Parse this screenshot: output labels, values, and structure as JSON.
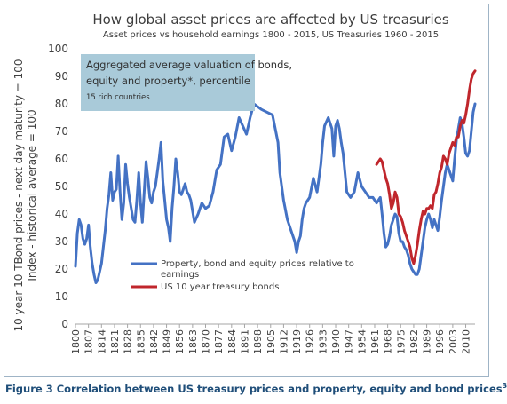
{
  "chart_data": {
    "type": "line",
    "title": "How global asset prices are affected by US treasuries",
    "subtitle": "Asset prices vs household earnings 1800 - 2015, US Treasuries 1960 - 2015",
    "ylabel_lines": [
      "10 year 10 TBond prices - next day maturity = 100",
      "Index - historical average = 100"
    ],
    "ylim": [
      0,
      100
    ],
    "yticks": [
      0,
      10,
      20,
      30,
      40,
      50,
      60,
      70,
      80,
      90,
      100
    ],
    "xlim": [
      1800,
      2015
    ],
    "xticks": [
      "1800",
      "1807",
      "1814",
      "1821",
      "1828",
      "1835",
      "1842",
      "1849",
      "1856",
      "1863",
      "1870",
      "1877",
      "1884",
      "1891",
      "1898",
      "1905",
      "1912",
      "1919",
      "1926",
      "1933",
      "1940",
      "1947",
      "1954",
      "1961",
      "1968",
      "1975",
      "1982",
      "1989",
      "1996",
      "2003",
      "2010"
    ],
    "annotation": {
      "lines": [
        "Aggregated average valuation of bonds,",
        "equity and property*, percentile"
      ],
      "sub": "15 rich countries"
    },
    "legend": [
      {
        "label_lines": [
          "Property, bond and equity prices relative to",
          "earnings"
        ],
        "color": "#4472c4"
      },
      {
        "label_lines": [
          "US 10 year treasury bonds"
        ],
        "color": "#c0262c"
      }
    ],
    "series": [
      {
        "name": "Property, bond and equity prices relative to earnings",
        "color": "#4472c4",
        "x": [
          1800,
          1801,
          1802,
          1803,
          1804,
          1805,
          1806,
          1807,
          1808,
          1809,
          1810,
          1811,
          1812,
          1813,
          1814,
          1815,
          1816,
          1817,
          1818,
          1819,
          1820,
          1821,
          1822,
          1823,
          1824,
          1825,
          1826,
          1827,
          1828,
          1829,
          1830,
          1831,
          1832,
          1833,
          1834,
          1835,
          1836,
          1837,
          1838,
          1839,
          1840,
          1841,
          1842,
          1843,
          1844,
          1845,
          1846,
          1847,
          1848,
          1849,
          1850,
          1851,
          1852,
          1853,
          1854,
          1855,
          1856,
          1857,
          1858,
          1859,
          1860,
          1861,
          1862,
          1864,
          1866,
          1868,
          1870,
          1872,
          1874,
          1876,
          1878,
          1880,
          1882,
          1884,
          1886,
          1888,
          1890,
          1892,
          1894,
          1896,
          1898,
          1900,
          1903,
          1906,
          1909,
          1910,
          1912,
          1914,
          1916,
          1918,
          1919,
          1920,
          1921,
          1922,
          1923,
          1924,
          1926,
          1928,
          1930,
          1932,
          1933,
          1934,
          1936,
          1938,
          1939,
          1940,
          1941,
          1942,
          1943,
          1944,
          1945,
          1946,
          1948,
          1950,
          1952,
          1954,
          1955,
          1956,
          1958,
          1960,
          1962,
          1964,
          1965,
          1966,
          1967,
          1968,
          1969,
          1970,
          1971,
          1972,
          1973,
          1974,
          1975,
          1976,
          1977,
          1978,
          1979,
          1980,
          1981,
          1982,
          1983,
          1984,
          1985,
          1986,
          1987,
          1988,
          1989,
          1990,
          1991,
          1992,
          1993,
          1994,
          1995,
          1996,
          1997,
          1998,
          1999,
          2000,
          2001,
          2002,
          2003,
          2004,
          2005,
          2006,
          2007,
          2008,
          2009,
          2010,
          2011,
          2012,
          2013,
          2014,
          2015
        ],
        "y": [
          21,
          33,
          38,
          36,
          31,
          29,
          31,
          36,
          28,
          22,
          18,
          15,
          16,
          19,
          22,
          28,
          34,
          42,
          47,
          55,
          45,
          48,
          49,
          61,
          48,
          38,
          44,
          58,
          51,
          46,
          42,
          38,
          37,
          45,
          55,
          44,
          37,
          48,
          59,
          53,
          46,
          44,
          48,
          50,
          55,
          60,
          66,
          52,
          45,
          38,
          35,
          30,
          42,
          50,
          60,
          55,
          48,
          47,
          49,
          51,
          48,
          47,
          45,
          37,
          40,
          44,
          42,
          43,
          48,
          56,
          58,
          68,
          69,
          63,
          68,
          75,
          72,
          69,
          75,
          80,
          79,
          78,
          77,
          76,
          66,
          55,
          45,
          38,
          34,
          30,
          26,
          30,
          32,
          38,
          42,
          44,
          46,
          53,
          48,
          58,
          66,
          72,
          75,
          71,
          61,
          72,
          74,
          71,
          66,
          62,
          55,
          48,
          46,
          48,
          55,
          50,
          49,
          48,
          46,
          46,
          44,
          46,
          40,
          33,
          28,
          29,
          32,
          36,
          38,
          40,
          39,
          33,
          30,
          30,
          28,
          27,
          25,
          22,
          20,
          19,
          18,
          18,
          20,
          25,
          30,
          35,
          38,
          40,
          38,
          35,
          38,
          36,
          34,
          39,
          45,
          50,
          55,
          58,
          56,
          54,
          52,
          60,
          67,
          71,
          75,
          73,
          68,
          62,
          61,
          63,
          70,
          77,
          80
        ]
      },
      {
        "name": "US 10 year treasury bonds",
        "color": "#c0262c",
        "x": [
          1962,
          1963,
          1964,
          1965,
          1966,
          1967,
          1968,
          1969,
          1970,
          1971,
          1972,
          1973,
          1974,
          1975,
          1976,
          1977,
          1978,
          1979,
          1980,
          1981,
          1982,
          1983,
          1984,
          1985,
          1986,
          1987,
          1988,
          1989,
          1990,
          1991,
          1992,
          1993,
          1994,
          1995,
          1996,
          1997,
          1998,
          1999,
          2000,
          2001,
          2002,
          2003,
          2004,
          2005,
          2006,
          2007,
          2008,
          2009,
          2010,
          2011,
          2012,
          2013,
          2014,
          2015
        ],
        "y": [
          58,
          59,
          60,
          59,
          56,
          53,
          51,
          47,
          42,
          44,
          48,
          46,
          40,
          39,
          37,
          34,
          32,
          30,
          28,
          24,
          22,
          25,
          29,
          34,
          38,
          41,
          40,
          42,
          42,
          43,
          42,
          47,
          48,
          51,
          55,
          57,
          61,
          60,
          58,
          62,
          64,
          66,
          65,
          68,
          68,
          72,
          74,
          73,
          76,
          80,
          85,
          89,
          91,
          92
        ]
      }
    ]
  },
  "caption": {
    "text": "Figure 3 Correlation between US treasury prices and property, equity and bond prices",
    "sup": "3"
  }
}
